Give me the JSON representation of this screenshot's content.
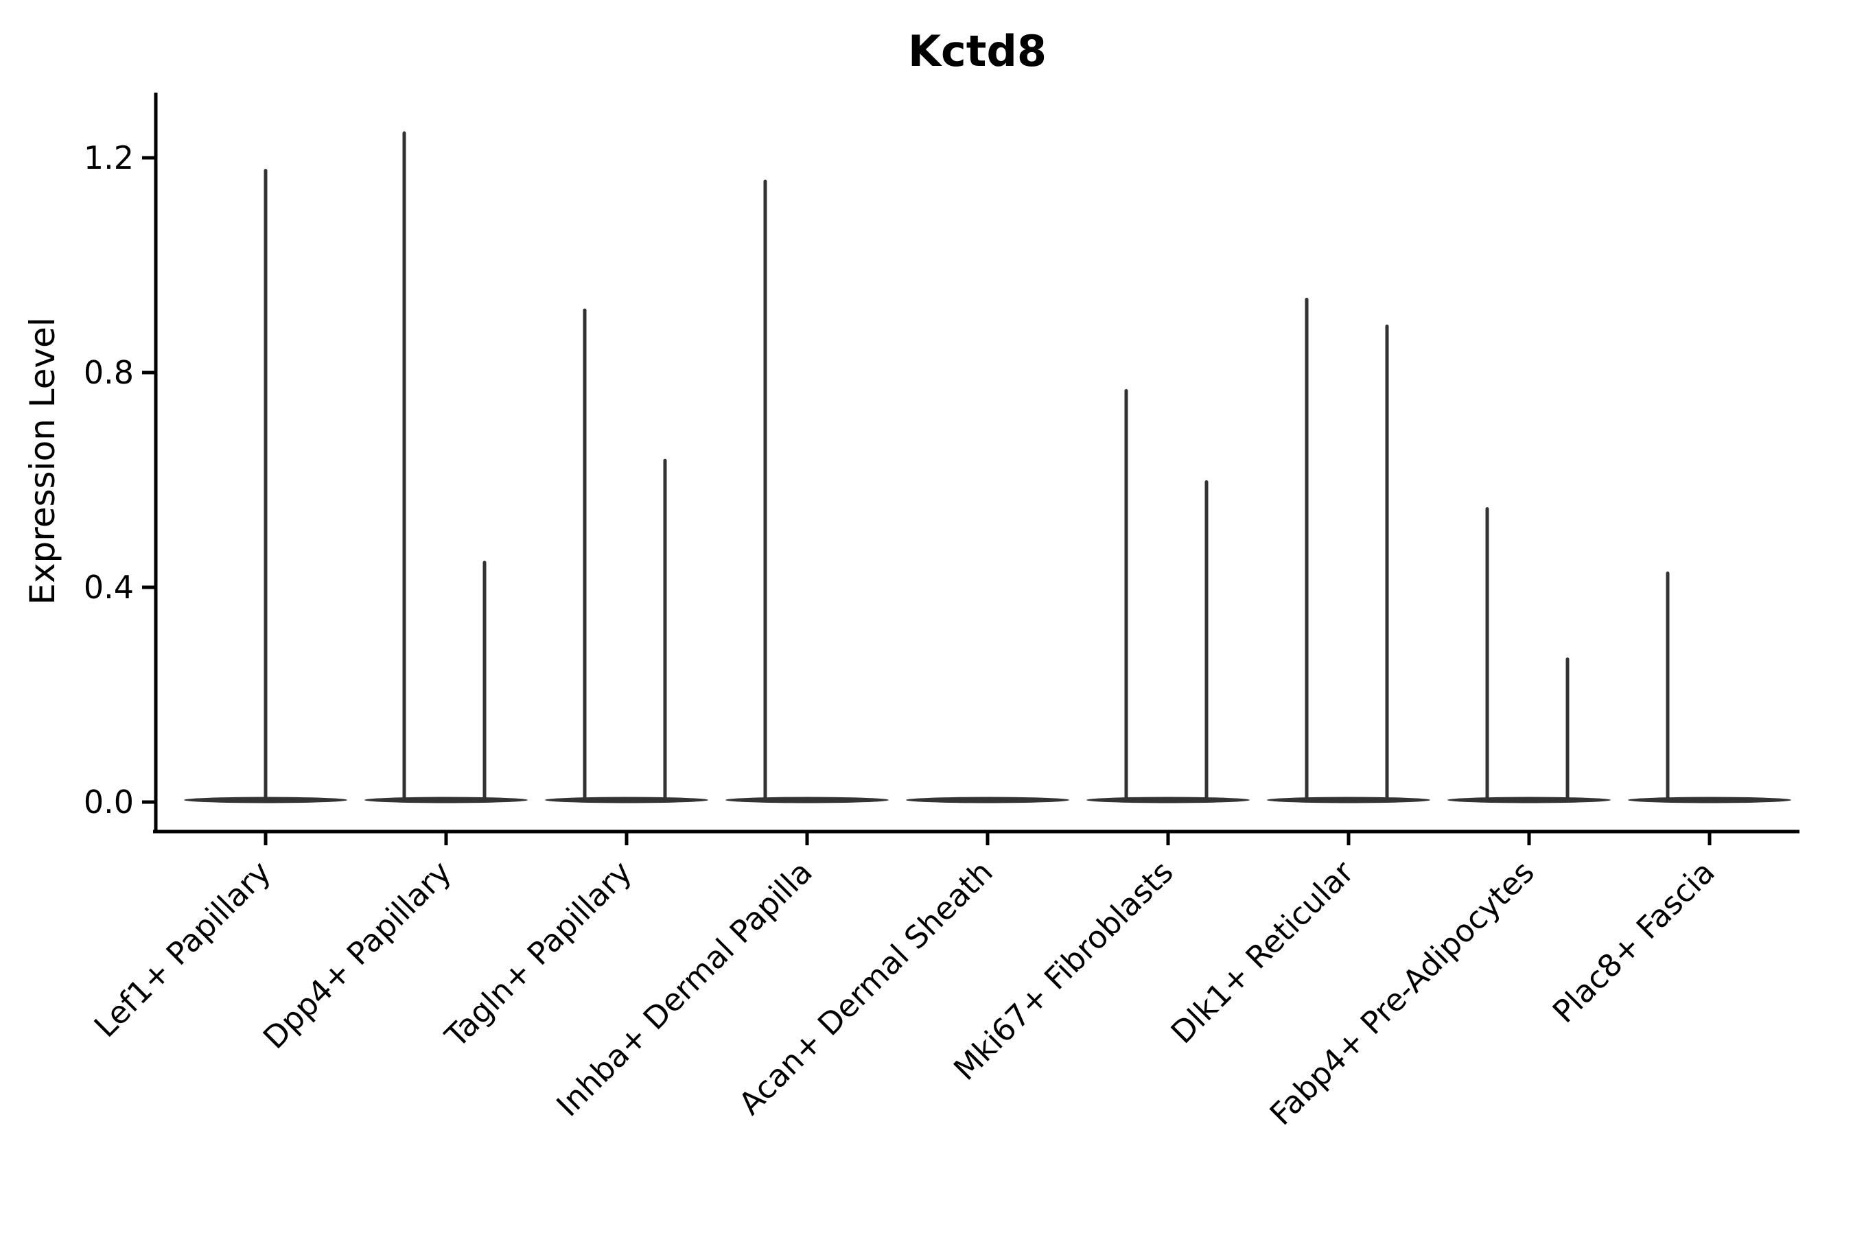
{
  "chart_data": {
    "type": "violin",
    "title": "Kctd8",
    "xlabel": "",
    "ylabel": "Expression Level",
    "ylim": [
      -0.06,
      1.32
    ],
    "yticks": [
      0.0,
      0.4,
      0.8,
      1.2
    ],
    "ytick_labels": [
      "0.0",
      "0.4",
      "0.8",
      "1.2"
    ],
    "grid": false,
    "legend": "none",
    "x_tick_rotation_deg": 45,
    "categories": [
      "Lef1+ Papillary",
      "Dpp4+ Papillary",
      "Tagln+ Papillary",
      "Inhba+ Dermal Papilla",
      "Acan+ Dermal Sheath",
      "Mki67+ Fibroblasts",
      "Dlk1+ Reticular",
      "Fabp4+ Pre-Adipocytes",
      "Plac8+ Fascia"
    ],
    "violins": [
      {
        "category": "Lef1+ Papillary",
        "body_center_value": 0.0,
        "spikes": [
          {
            "position": "center",
            "max": 1.18
          }
        ]
      },
      {
        "category": "Dpp4+ Papillary",
        "body_center_value": 0.0,
        "spikes": [
          {
            "position": "left",
            "max": 1.25
          },
          {
            "position": "right",
            "max": 0.45
          }
        ]
      },
      {
        "category": "Tagln+ Papillary",
        "body_center_value": 0.0,
        "spikes": [
          {
            "position": "left",
            "max": 0.92
          },
          {
            "position": "right",
            "max": 0.64
          }
        ]
      },
      {
        "category": "Inhba+ Dermal Papilla",
        "body_center_value": 0.0,
        "spikes": [
          {
            "position": "left",
            "max": 1.16
          }
        ]
      },
      {
        "category": "Acan+ Dermal Sheath",
        "body_center_value": 0.0,
        "spikes": []
      },
      {
        "category": "Mki67+ Fibroblasts",
        "body_center_value": 0.0,
        "spikes": [
          {
            "position": "left",
            "max": 0.77
          },
          {
            "position": "right",
            "max": 0.6
          }
        ]
      },
      {
        "category": "Dlk1+ Reticular",
        "body_center_value": 0.0,
        "spikes": [
          {
            "position": "left",
            "max": 0.94
          },
          {
            "position": "right",
            "max": 0.89
          }
        ]
      },
      {
        "category": "Fabp4+ Pre-Adipocytes",
        "body_center_value": 0.0,
        "spikes": [
          {
            "position": "left",
            "max": 0.55
          },
          {
            "position": "right",
            "max": 0.27
          }
        ]
      },
      {
        "category": "Plac8+ Fascia",
        "body_center_value": 0.0,
        "spikes": [
          {
            "position": "left",
            "max": 0.43
          }
        ]
      }
    ]
  },
  "colors": {
    "violin": "#333333",
    "axis": "#000000",
    "text": "#000000",
    "background": "#ffffff"
  }
}
